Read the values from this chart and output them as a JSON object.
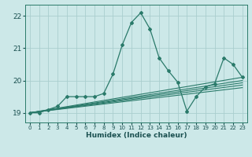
{
  "xlabel": "Humidex (Indice chaleur)",
  "ylabel": "",
  "xlim": [
    -0.5,
    23.5
  ],
  "ylim": [
    18.7,
    22.35
  ],
  "yticks": [
    19,
    20,
    21,
    22
  ],
  "xticks": [
    0,
    1,
    2,
    3,
    4,
    5,
    6,
    7,
    8,
    9,
    10,
    11,
    12,
    13,
    14,
    15,
    16,
    17,
    18,
    19,
    20,
    21,
    22,
    23
  ],
  "bg_color": "#cce8e8",
  "grid_color": "#aacece",
  "line_color": "#2a7a6a",
  "main_line": [
    0,
    19.0,
    1,
    19.0,
    2,
    19.1,
    3,
    19.2,
    4,
    19.5,
    5,
    19.5,
    6,
    19.5,
    7,
    19.5,
    8,
    19.6,
    9,
    20.2,
    10,
    21.1,
    11,
    21.8,
    12,
    22.1,
    13,
    21.6,
    14,
    20.7,
    15,
    20.3,
    16,
    19.95,
    17,
    19.05,
    18,
    19.5,
    19,
    19.8,
    20,
    19.9,
    21,
    20.7,
    22,
    20.5,
    23,
    20.1
  ],
  "trend_lines": [
    [
      0,
      19.0,
      23,
      20.1
    ],
    [
      0,
      19.0,
      23,
      20.0
    ],
    [
      0,
      19.0,
      23,
      19.93
    ],
    [
      0,
      19.0,
      23,
      19.86
    ],
    [
      0,
      19.0,
      23,
      19.78
    ]
  ]
}
